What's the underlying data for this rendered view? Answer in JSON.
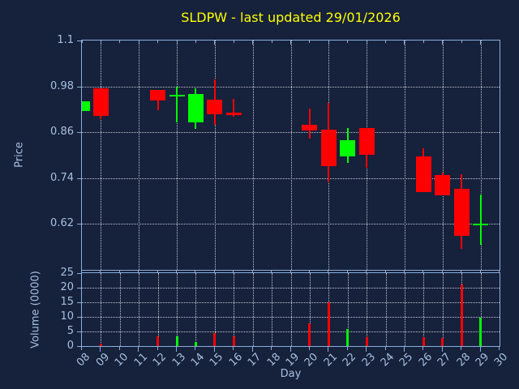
{
  "title": "SLDPW - last updated 29/01/2026",
  "colors": {
    "background": "#16213C",
    "axis": "#8AAFD9",
    "label": "#A7C1E0",
    "grid": "#C2C8D2",
    "title": "#FFFF00",
    "up": "#00FF00",
    "down": "#FF0000"
  },
  "price_axis": {
    "label": "Price",
    "tick_labels": [
      "1.1",
      "0.98",
      "0.86",
      "0.74",
      "0.62"
    ],
    "tick_values": [
      1.1,
      0.98,
      0.86,
      0.74,
      0.62
    ],
    "min": 0.5,
    "max": 1.1
  },
  "volume_axis": {
    "label": "Volume (0000)",
    "tick_labels": [
      "25",
      "20",
      "15",
      "10",
      "5",
      "0"
    ],
    "tick_values": [
      25,
      20,
      15,
      10,
      5,
      0
    ],
    "min": 0,
    "max": 25
  },
  "x_axis": {
    "label": "Day",
    "tick_labels": [
      "08",
      "09",
      "10",
      "11",
      "12",
      "13",
      "14",
      "15",
      "16",
      "17",
      "18",
      "19",
      "20",
      "21",
      "22",
      "23",
      "24",
      "25",
      "26",
      "27",
      "28",
      "29",
      "30"
    ],
    "tick_values": [
      8,
      9,
      10,
      11,
      12,
      13,
      14,
      15,
      16,
      17,
      18,
      19,
      20,
      21,
      22,
      23,
      24,
      25,
      26,
      27,
      28,
      29,
      30
    ]
  },
  "grid": {
    "price_hlines": [
      0.98,
      0.86,
      0.74,
      0.62
    ],
    "price_vdays": [
      9,
      11,
      13,
      15,
      17,
      19,
      21,
      23,
      25,
      27,
      29
    ],
    "volume_hlines": [
      20,
      15,
      10,
      5
    ],
    "volume_vdays": [
      9,
      10,
      11,
      12,
      13,
      14,
      15,
      16,
      17,
      18,
      19,
      20,
      21,
      22,
      23,
      24,
      25,
      26,
      27,
      28,
      29
    ]
  },
  "chart_data": {
    "type": "candlestick_with_volume",
    "title": "SLDPW - last updated 29/01/2026",
    "xlabel": "Day",
    "ylabel_price": "Price",
    "ylabel_volume": "Volume (0000)",
    "x_range_days": [
      8,
      30
    ],
    "price_range": [
      0.5,
      1.1
    ],
    "volume_range": [
      0,
      25
    ],
    "candles": [
      {
        "day": 8,
        "open": 0.915,
        "high": 0.94,
        "low": 0.915,
        "close": 0.94,
        "volume": 0
      },
      {
        "day": 9,
        "open": 0.975,
        "high": 0.975,
        "low": 0.895,
        "close": 0.903,
        "volume": 0.7
      },
      {
        "day": 12,
        "open": 0.97,
        "high": 0.97,
        "low": 0.917,
        "close": 0.943,
        "volume": 3.4
      },
      {
        "day": 13,
        "open": 0.953,
        "high": 0.98,
        "low": 0.885,
        "close": 0.958,
        "volume": 3.2
      },
      {
        "day": 14,
        "open": 0.885,
        "high": 0.975,
        "low": 0.868,
        "close": 0.96,
        "volume": 1.4
      },
      {
        "day": 15,
        "open": 0.945,
        "high": 0.998,
        "low": 0.88,
        "close": 0.908,
        "volume": 4.5
      },
      {
        "day": 16,
        "open": 0.912,
        "high": 0.947,
        "low": 0.901,
        "close": 0.905,
        "volume": 3.4
      },
      {
        "day": 20,
        "open": 0.88,
        "high": 0.922,
        "low": 0.843,
        "close": 0.864,
        "volume": 7.9
      },
      {
        "day": 21,
        "open": 0.867,
        "high": 0.937,
        "low": 0.729,
        "close": 0.772,
        "volume": 14.9
      },
      {
        "day": 22,
        "open": 0.796,
        "high": 0.871,
        "low": 0.779,
        "close": 0.839,
        "volume": 5.7
      },
      {
        "day": 23,
        "open": 0.871,
        "high": 0.871,
        "low": 0.768,
        "close": 0.8,
        "volume": 3.0
      },
      {
        "day": 26,
        "open": 0.797,
        "high": 0.818,
        "low": 0.703,
        "close": 0.703,
        "volume": 3.1
      },
      {
        "day": 27,
        "open": 0.747,
        "high": 0.755,
        "low": 0.696,
        "close": 0.696,
        "volume": 2.8
      },
      {
        "day": 28,
        "open": 0.713,
        "high": 0.751,
        "low": 0.555,
        "close": 0.588,
        "volume": 21.2
      },
      {
        "day": 29,
        "open": 0.617,
        "high": 0.698,
        "low": 0.565,
        "close": 0.621,
        "volume": 9.8
      }
    ]
  }
}
